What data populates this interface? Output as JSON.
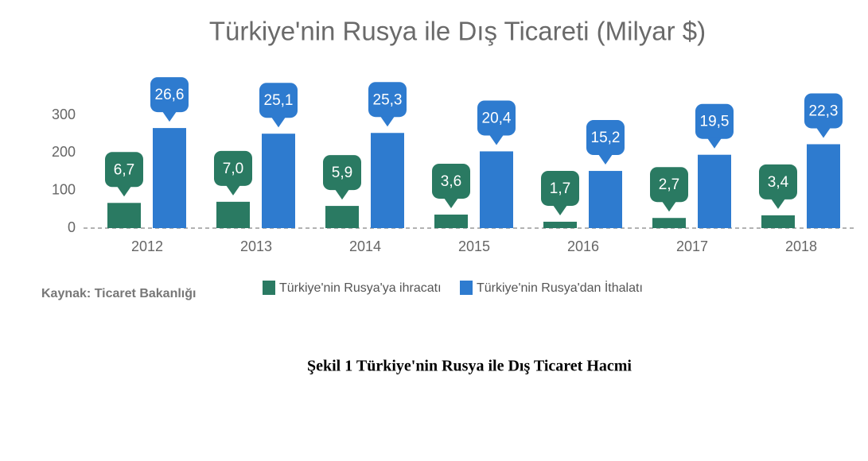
{
  "chart_data": {
    "type": "bar",
    "title": "Türkiye'nin Rusya ile Dış Ticareti (Milyar $)",
    "source": "Kaynak: Ticaret Bakanlığı",
    "categories": [
      "2012",
      "2013",
      "2014",
      "2015",
      "2016",
      "2017",
      "2018"
    ],
    "series": [
      {
        "name": "Türkiye'nin Rusya'ya ihracatı",
        "color": "#2a7a62",
        "values": [
          67,
          70,
          59,
          36,
          17,
          27,
          34
        ],
        "value_labels": [
          "6,7",
          "7,0",
          "5,9",
          "3,6",
          "1,7",
          "2,7",
          "3,4"
        ]
      },
      {
        "name": "Türkiye'nin Rusya'dan İthalatı",
        "color": "#2e7bcf",
        "values": [
          266,
          251,
          253,
          204,
          152,
          195,
          223
        ],
        "value_labels": [
          "26,6",
          "25,1",
          "25,3",
          "20,4",
          "15,2",
          "19,5",
          "22,3"
        ]
      }
    ],
    "ylim": [
      0,
      300
    ],
    "yticks": [
      0,
      100,
      200,
      300
    ]
  },
  "caption": "Şekil 1 Türkiye'nin Rusya ile Dış Ticaret Hacmi"
}
